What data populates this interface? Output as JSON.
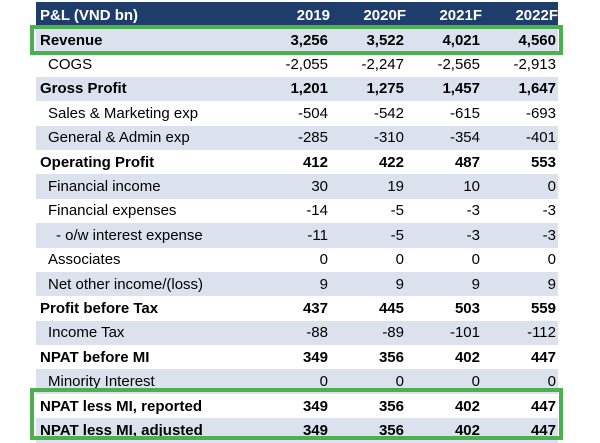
{
  "header": {
    "label": "P&L  (VND bn)",
    "years": [
      "2019",
      "2020F",
      "2021F",
      "2022F"
    ]
  },
  "rows": [
    {
      "label": "Revenue",
      "values": [
        "3,256",
        "3,522",
        "4,021",
        "4,560"
      ]
    },
    {
      "label": "COGS",
      "values": [
        "-2,055",
        "-2,247",
        "-2,565",
        "-2,913"
      ]
    },
    {
      "label": "Gross Profit",
      "values": [
        "1,201",
        "1,275",
        "1,457",
        "1,647"
      ]
    },
    {
      "label": "Sales & Marketing exp",
      "values": [
        "-504",
        "-542",
        "-615",
        "-693"
      ]
    },
    {
      "label": "General & Admin exp",
      "values": [
        "-285",
        "-310",
        "-354",
        "-401"
      ]
    },
    {
      "label": "Operating Profit",
      "values": [
        "412",
        "422",
        "487",
        "553"
      ]
    },
    {
      "label": "Financial income",
      "values": [
        "30",
        "19",
        "10",
        "0"
      ]
    },
    {
      "label": "Financial expenses",
      "values": [
        "-14",
        "-5",
        "-3",
        "-3"
      ]
    },
    {
      "label": "- o/w interest expense",
      "values": [
        "-11",
        "-5",
        "-3",
        "-3"
      ]
    },
    {
      "label": "Associates",
      "values": [
        "0",
        "0",
        "0",
        "0"
      ]
    },
    {
      "label": "Net other income/(loss)",
      "values": [
        "9",
        "9",
        "9",
        "9"
      ]
    },
    {
      "label": "Profit before Tax",
      "values": [
        "437",
        "445",
        "503",
        "559"
      ]
    },
    {
      "label": "Income Tax",
      "values": [
        "-88",
        "-89",
        "-101",
        "-112"
      ]
    },
    {
      "label": "NPAT before MI",
      "values": [
        "349",
        "356",
        "402",
        "447"
      ]
    },
    {
      "label": "Minority Interest",
      "values": [
        "0",
        "0",
        "0",
        "0"
      ]
    },
    {
      "label": "NPAT less MI, reported",
      "values": [
        "349",
        "356",
        "402",
        "447"
      ]
    },
    {
      "label": "NPAT less MI, adjusted",
      "values": [
        "349",
        "356",
        "402",
        "447"
      ]
    }
  ],
  "colors": {
    "header_bg": "#1f3d6b",
    "band_bg": "#dbe2ee",
    "highlight_border": "#4caf50"
  }
}
